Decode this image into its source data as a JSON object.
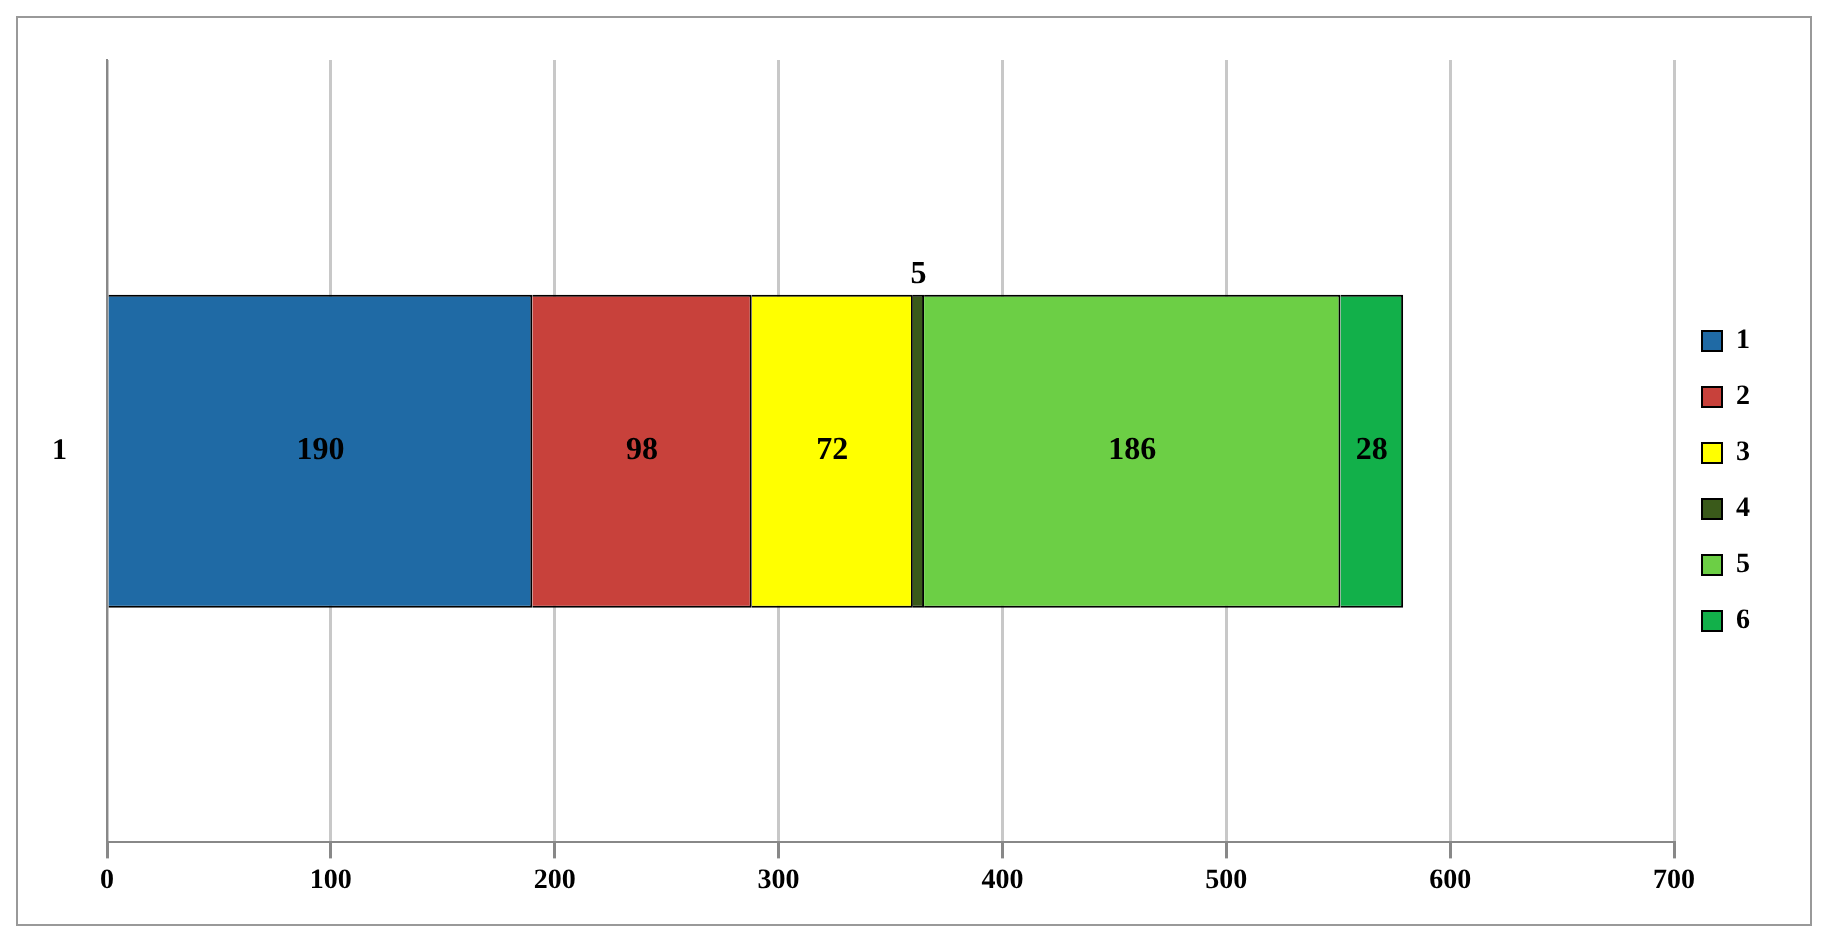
{
  "chart_data": {
    "type": "bar",
    "orientation": "horizontal",
    "stacked": true,
    "categories": [
      "1"
    ],
    "series": [
      {
        "name": "1",
        "color": "#1f6aa5",
        "values": [
          190
        ]
      },
      {
        "name": "2",
        "color": "#c8413b",
        "values": [
          98
        ]
      },
      {
        "name": "3",
        "color": "#ffff00",
        "values": [
          72
        ]
      },
      {
        "name": "4",
        "color": "#3a5a1a",
        "values": [
          5
        ]
      },
      {
        "name": "5",
        "color": "#6ccf45",
        "values": [
          186
        ]
      },
      {
        "name": "6",
        "color": "#12b04a",
        "values": [
          28
        ]
      }
    ],
    "xlim": [
      0,
      700
    ],
    "xticks": [
      0,
      100,
      200,
      300,
      400,
      500,
      600,
      700
    ],
    "grid": "x",
    "legend": "right",
    "data_labels": true
  }
}
